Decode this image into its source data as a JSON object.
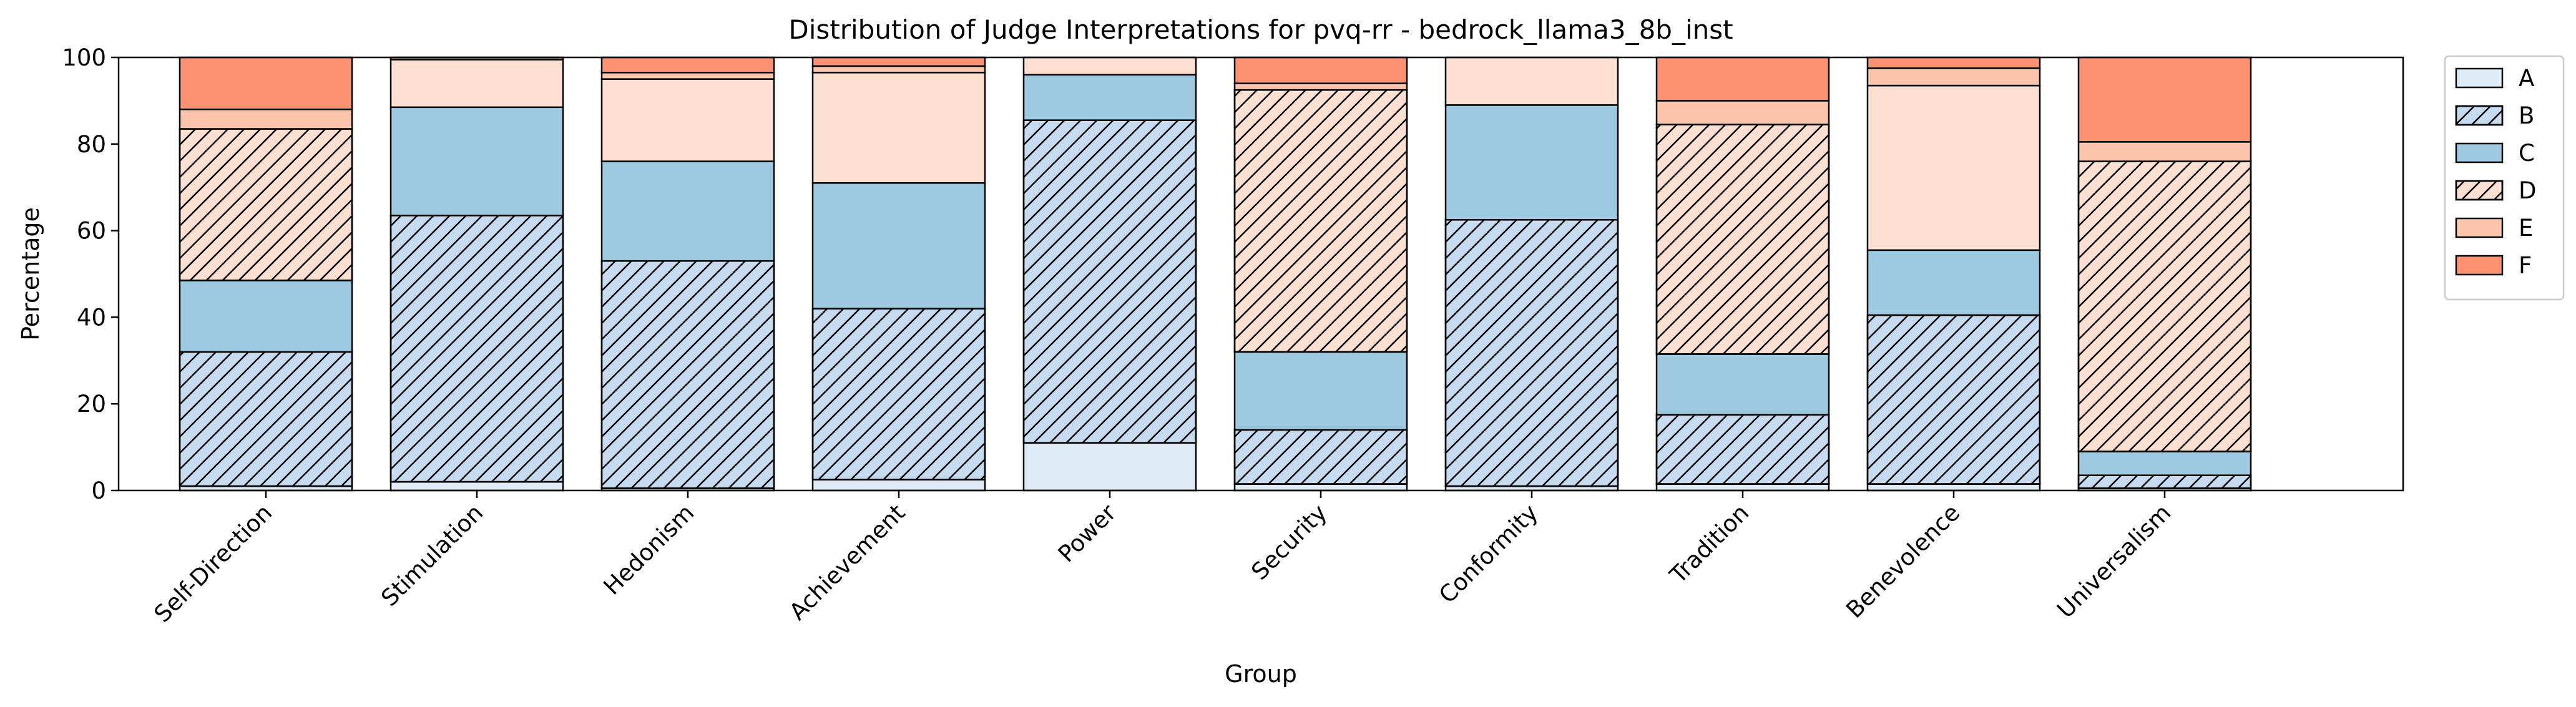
{
  "chart_data": {
    "type": "bar",
    "stacked": true,
    "title": "Distribution of Judge Interpretations for pvq-rr - bedrock_llama3_8b_inst",
    "xlabel": "Group",
    "ylabel": "Percentage",
    "ylim": [
      0,
      100
    ],
    "yticks": [
      0,
      20,
      40,
      60,
      80,
      100
    ],
    "grid": false,
    "legend_position": "outside-top-right",
    "categories": [
      "Self-Direction",
      "Stimulation",
      "Hedonism",
      "Achievement",
      "Power",
      "Security",
      "Conformity",
      "Tradition",
      "Benevolence",
      "Universalism"
    ],
    "series": [
      {
        "name": "A",
        "color": "#deebf7",
        "hatch": false,
        "values": [
          1.0,
          2.0,
          0.5,
          2.5,
          11.0,
          1.5,
          1.0,
          1.5,
          1.5,
          0.5
        ]
      },
      {
        "name": "B",
        "color": "#c6dbef",
        "hatch": true,
        "values": [
          31.0,
          61.5,
          52.5,
          39.5,
          74.5,
          12.5,
          61.5,
          16.0,
          39.0,
          3.0
        ]
      },
      {
        "name": "C",
        "color": "#9ecae1",
        "hatch": false,
        "values": [
          16.5,
          25.0,
          23.0,
          29.0,
          10.5,
          18.0,
          26.5,
          14.0,
          15.0,
          5.5
        ]
      },
      {
        "name": "D",
        "color": "#fee0d2",
        "hatch": true,
        "values": [
          35.0,
          0.0,
          0.0,
          0.0,
          0.0,
          60.5,
          0.0,
          53.0,
          0.0,
          67.0
        ]
      },
      {
        "name": "E",
        "color": "#fcc5ac",
        "hatch": false,
        "values": [
          4.5,
          0.0,
          1.5,
          1.5,
          0.0,
          1.5,
          0.0,
          5.5,
          4.0,
          4.5
        ]
      },
      {
        "name": "F",
        "color": "#fc9272",
        "hatch": false,
        "values": [
          12.0,
          0.5,
          3.5,
          2.0,
          0.0,
          6.0,
          0.0,
          10.0,
          2.5,
          19.5
        ]
      }
    ],
    "extra_segments_note": "D_light",
    "light_segments": {
      "color": "#fee0d2",
      "values": [
        0.0,
        11.0,
        19.0,
        25.5,
        4.0,
        0.0,
        11.0,
        0.0,
        38.0,
        0.0
      ]
    }
  }
}
